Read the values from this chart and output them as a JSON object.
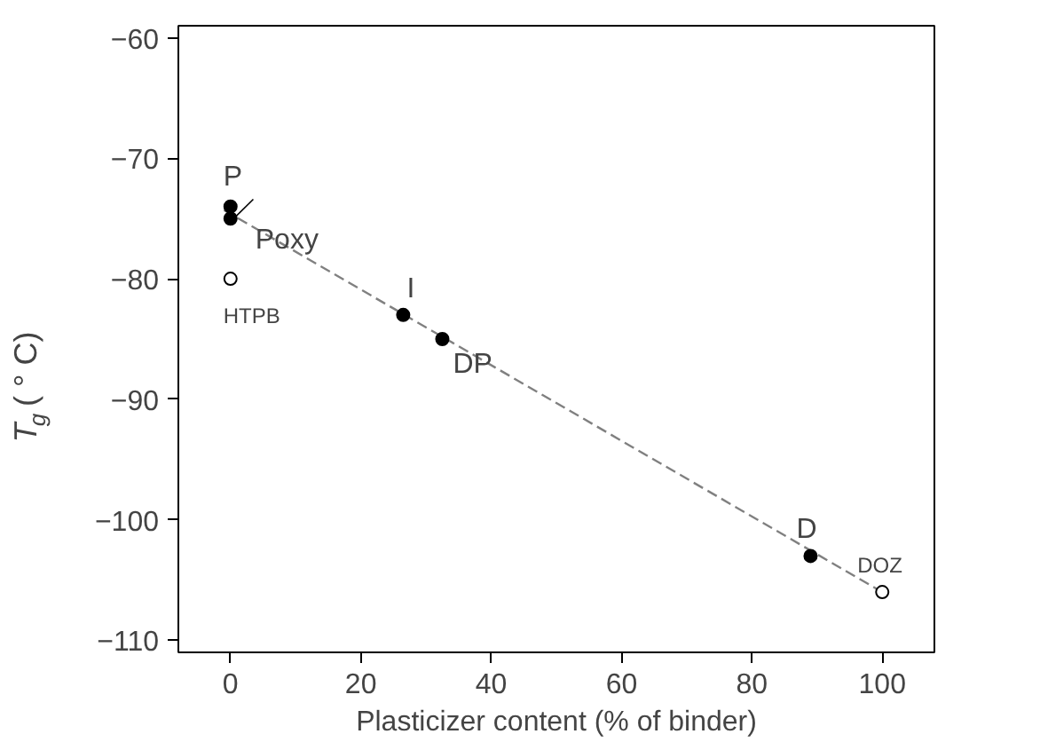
{
  "chart_data": {
    "type": "scatter",
    "xlabel": "Plasticizer content (% of binder)",
    "ylabel": "T$_{g}$ ( ° C)",
    "xlim": [
      -8,
      108
    ],
    "ylim": [
      -111,
      -59
    ],
    "xticks": [
      0,
      20,
      40,
      60,
      80,
      100
    ],
    "yticks": [
      -110,
      -100,
      -90,
      -80,
      -70,
      -60
    ],
    "grid": false,
    "series": [
      {
        "type": "line",
        "color": "#808080",
        "line_style": "dashed",
        "marker": "none",
        "x": [
          -1,
          100
        ],
        "values": [
          -74.3,
          -106
        ]
      },
      {
        "color": "#000000",
        "marker": "circle",
        "x": [
          0,
          0,
          26.5,
          32.5,
          89
        ],
        "values": [
          -74,
          -75,
          -83,
          -85,
          -103
        ]
      },
      {
        "color": "#ffffff",
        "marker": "circle",
        "x": [
          0,
          100
        ],
        "values": [
          -80,
          -106
        ]
      }
    ],
    "annotations": [
      {
        "text": "P",
        "x": 0,
        "y": -74
      },
      {
        "text": "Poxy",
        "x": 0,
        "y": -75
      },
      {
        "text": "HTPB",
        "x": 0,
        "y": -80
      },
      {
        "text": "I",
        "x": 26.5,
        "y": -83
      },
      {
        "text": "DP",
        "x": 32.5,
        "y": -85
      },
      {
        "text": "D",
        "x": 89,
        "y": -103
      },
      {
        "text": "DOZ",
        "x": 100,
        "y": -106
      }
    ]
  }
}
